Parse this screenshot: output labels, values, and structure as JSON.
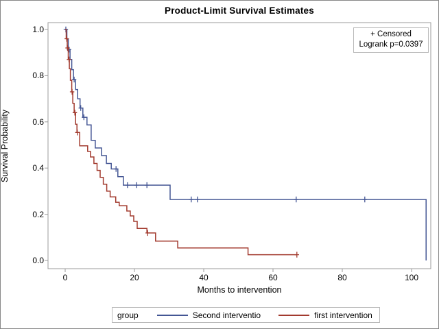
{
  "title": "Product-Limit Survival Estimates",
  "inset": {
    "censored_label": "+ Censored",
    "logrank_label": "Logrank p=0.0397"
  },
  "y_axis": {
    "label": "Survival Probability",
    "tick_labels": [
      "1.0",
      "0.8",
      "0.6",
      "0.4",
      "0.2",
      "0.0"
    ]
  },
  "x_axis": {
    "label": "Months to intervention",
    "tick_labels": [
      "0",
      "20",
      "40",
      "60",
      "80",
      "100"
    ]
  },
  "legend": {
    "title": "group",
    "entries": [
      {
        "label": "Second interventio",
        "color": "#445694"
      },
      {
        "label": "first intervention",
        "color": "#A23A2E"
      }
    ]
  },
  "chart_data": {
    "type": "line",
    "subtype": "kaplan-meier-step-survival",
    "title": "Product-Limit Survival Estimates",
    "xlabel": "Months to intervention",
    "ylabel": "Survival Probability",
    "xlim": [
      -5,
      105.5
    ],
    "ylim": [
      -0.035,
      1.03
    ],
    "x_ticks": [
      0,
      20,
      40,
      60,
      80,
      100
    ],
    "y_ticks": [
      0.0,
      0.2,
      0.4,
      0.6,
      0.8,
      1.0
    ],
    "grid": false,
    "legend_position": "bottom",
    "annotations": [
      "+ Censored",
      "Logrank p=0.0397"
    ],
    "series": [
      {
        "name": "Second interventio",
        "color": "#445694",
        "steps": [
          [
            0,
            1.0
          ],
          [
            0.5,
            0.957
          ],
          [
            0.9,
            0.913
          ],
          [
            1.4,
            0.87
          ],
          [
            1.9,
            0.826
          ],
          [
            2.4,
            0.783
          ],
          [
            3.0,
            0.74
          ],
          [
            3.6,
            0.7
          ],
          [
            4.3,
            0.66
          ],
          [
            5.1,
            0.62
          ],
          [
            6.3,
            0.587
          ],
          [
            7.5,
            0.52
          ],
          [
            8.7,
            0.487
          ],
          [
            10.5,
            0.454
          ],
          [
            11.9,
            0.42
          ],
          [
            13.3,
            0.396
          ],
          [
            15.2,
            0.363
          ],
          [
            16.8,
            0.326
          ],
          [
            30.3,
            0.264
          ],
          [
            104.2,
            0.0
          ]
        ],
        "censored": [
          [
            0.2,
            1.0
          ],
          [
            1.1,
            0.913
          ],
          [
            2.6,
            0.783
          ],
          [
            4.5,
            0.66
          ],
          [
            5.4,
            0.62
          ],
          [
            14.7,
            0.396
          ],
          [
            18.0,
            0.326
          ],
          [
            20.6,
            0.326
          ],
          [
            23.6,
            0.326
          ],
          [
            36.4,
            0.264
          ],
          [
            38.2,
            0.264
          ],
          [
            66.7,
            0.264
          ],
          [
            86.5,
            0.264
          ]
        ]
      },
      {
        "name": "first intervention",
        "color": "#A23A2E",
        "steps": [
          [
            0,
            1.0
          ],
          [
            0.3,
            0.96
          ],
          [
            0.6,
            0.92
          ],
          [
            0.9,
            0.87
          ],
          [
            1.2,
            0.83
          ],
          [
            1.5,
            0.78
          ],
          [
            1.9,
            0.73
          ],
          [
            2.2,
            0.68
          ],
          [
            2.6,
            0.64
          ],
          [
            3.0,
            0.59
          ],
          [
            3.4,
            0.554
          ],
          [
            4.2,
            0.496
          ],
          [
            6.5,
            0.472
          ],
          [
            7.3,
            0.448
          ],
          [
            8.3,
            0.42
          ],
          [
            9.2,
            0.39
          ],
          [
            10.1,
            0.36
          ],
          [
            11.0,
            0.33
          ],
          [
            12.0,
            0.3
          ],
          [
            13.0,
            0.275
          ],
          [
            14.6,
            0.252
          ],
          [
            15.6,
            0.237
          ],
          [
            17.8,
            0.214
          ],
          [
            18.8,
            0.193
          ],
          [
            19.8,
            0.169
          ],
          [
            20.8,
            0.139
          ],
          [
            23.6,
            0.119
          ],
          [
            26.1,
            0.084
          ],
          [
            32.5,
            0.054
          ],
          [
            52.8,
            0.025
          ],
          [
            66.9,
            0.025
          ]
        ],
        "censored": [
          [
            0.45,
            0.96
          ],
          [
            0.7,
            0.92
          ],
          [
            1.1,
            0.87
          ],
          [
            2.0,
            0.73
          ],
          [
            2.8,
            0.64
          ],
          [
            3.5,
            0.554
          ],
          [
            23.8,
            0.119
          ],
          [
            66.9,
            0.025
          ]
        ]
      }
    ]
  }
}
